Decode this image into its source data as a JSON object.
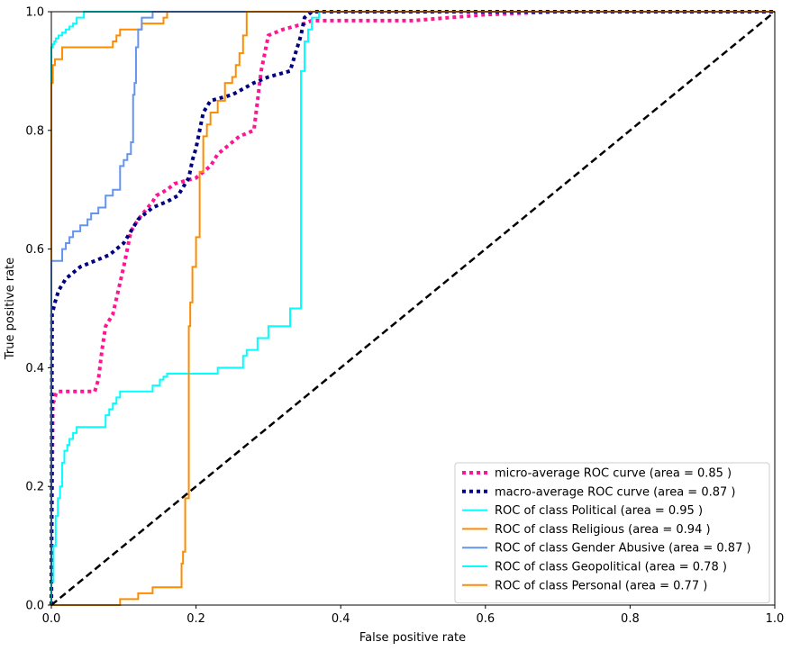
{
  "chart_data": {
    "type": "line",
    "xlabel": "False positive rate",
    "ylabel": "True positive rate",
    "xlim": [
      0.0,
      1.0
    ],
    "ylim": [
      0.0,
      1.0
    ],
    "grid": false,
    "legend_position": "bottom-right",
    "x_ticks": [
      "0.0",
      "0.2",
      "0.4",
      "0.6",
      "0.8",
      "1.0"
    ],
    "y_ticks": [
      "0.0",
      "0.2",
      "0.4",
      "0.6",
      "0.8",
      "1.0"
    ],
    "series": [
      {
        "name": "micro-average ROC curve (area = 0.85 )",
        "color": "#ff1493",
        "style": "dotted",
        "x": [
          0.0,
          0.002,
          0.004,
          0.005,
          0.006,
          0.008,
          0.01,
          0.06,
          0.065,
          0.07,
          0.075,
          0.08,
          0.085,
          0.1,
          0.105,
          0.11,
          0.115,
          0.12,
          0.14,
          0.145,
          0.16,
          0.17,
          0.2,
          0.22,
          0.23,
          0.24,
          0.26,
          0.28,
          0.285,
          0.29,
          0.295,
          0.3,
          0.32,
          0.35,
          0.36,
          0.4,
          0.5,
          0.55,
          0.6,
          0.7,
          0.8,
          0.9,
          1.0
        ],
        "y": [
          0.0,
          0.34,
          0.345,
          0.35,
          0.355,
          0.36,
          0.36,
          0.36,
          0.38,
          0.43,
          0.47,
          0.48,
          0.49,
          0.57,
          0.6,
          0.63,
          0.64,
          0.65,
          0.68,
          0.69,
          0.7,
          0.71,
          0.72,
          0.74,
          0.76,
          0.77,
          0.79,
          0.8,
          0.85,
          0.9,
          0.93,
          0.96,
          0.97,
          0.98,
          0.985,
          0.985,
          0.985,
          0.99,
          0.995,
          1.0,
          1.0,
          1.0,
          1.0
        ]
      },
      {
        "name": "macro-average ROC curve (area = 0.87 )",
        "color": "#000080",
        "style": "dotted",
        "x": [
          0.0,
          0.001,
          0.005,
          0.01,
          0.02,
          0.03,
          0.04,
          0.06,
          0.08,
          0.09,
          0.1,
          0.11,
          0.115,
          0.12,
          0.13,
          0.14,
          0.16,
          0.175,
          0.18,
          0.19,
          0.195,
          0.2,
          0.205,
          0.21,
          0.22,
          0.25,
          0.28,
          0.3,
          0.33,
          0.345,
          0.35,
          0.36,
          0.4,
          0.6,
          0.8,
          1.0
        ],
        "y": [
          0.0,
          0.49,
          0.51,
          0.53,
          0.55,
          0.56,
          0.57,
          0.58,
          0.59,
          0.6,
          0.61,
          0.63,
          0.64,
          0.65,
          0.66,
          0.67,
          0.68,
          0.69,
          0.7,
          0.72,
          0.75,
          0.77,
          0.8,
          0.83,
          0.85,
          0.86,
          0.88,
          0.89,
          0.9,
          0.96,
          0.99,
          1.0,
          1.0,
          1.0,
          1.0,
          1.0
        ]
      },
      {
        "name": "ROC of class Political (area = 0.95 )",
        "color": "#00ffff",
        "style": "solid",
        "x": [
          0.0,
          0.0,
          0.002,
          0.002,
          0.004,
          0.004,
          0.006,
          0.006,
          0.01,
          0.01,
          0.015,
          0.015,
          0.02,
          0.02,
          0.025,
          0.025,
          0.03,
          0.03,
          0.035,
          0.035,
          0.045,
          0.045,
          0.14,
          0.14,
          0.35,
          1.0
        ],
        "y": [
          0.0,
          0.94,
          0.94,
          0.945,
          0.945,
          0.95,
          0.95,
          0.955,
          0.955,
          0.96,
          0.96,
          0.965,
          0.965,
          0.97,
          0.97,
          0.975,
          0.975,
          0.98,
          0.98,
          0.99,
          0.99,
          1.0,
          1.0,
          1.0,
          1.0,
          1.0
        ]
      },
      {
        "name": "ROC of class Religious (area = 0.94 )",
        "color": "#ff8c00",
        "style": "solid",
        "x": [
          0.0,
          0.0,
          0.002,
          0.002,
          0.005,
          0.005,
          0.015,
          0.015,
          0.085,
          0.085,
          0.09,
          0.09,
          0.095,
          0.095,
          0.125,
          0.125,
          0.155,
          0.155,
          0.16,
          0.16,
          0.175,
          0.175,
          1.0
        ],
        "y": [
          0.0,
          0.88,
          0.88,
          0.91,
          0.91,
          0.92,
          0.92,
          0.94,
          0.94,
          0.95,
          0.95,
          0.96,
          0.96,
          0.97,
          0.97,
          0.98,
          0.98,
          0.99,
          0.99,
          1.0,
          1.0,
          1.0,
          1.0
        ]
      },
      {
        "name": "ROC of class Gender Abusive (area = 0.87 )",
        "color": "#6495ed",
        "style": "solid",
        "x": [
          0.0,
          0.0,
          0.015,
          0.015,
          0.02,
          0.02,
          0.025,
          0.025,
          0.03,
          0.03,
          0.04,
          0.04,
          0.05,
          0.05,
          0.055,
          0.055,
          0.065,
          0.065,
          0.075,
          0.075,
          0.085,
          0.085,
          0.095,
          0.095,
          0.1,
          0.1,
          0.105,
          0.105,
          0.11,
          0.11,
          0.113,
          0.113,
          0.115,
          0.115,
          0.117,
          0.117,
          0.12,
          0.12,
          0.125,
          0.125,
          0.14,
          0.14,
          1.0
        ],
        "y": [
          0.0,
          0.58,
          0.58,
          0.6,
          0.6,
          0.61,
          0.61,
          0.62,
          0.62,
          0.63,
          0.63,
          0.64,
          0.64,
          0.65,
          0.65,
          0.66,
          0.66,
          0.67,
          0.67,
          0.69,
          0.69,
          0.7,
          0.7,
          0.74,
          0.74,
          0.75,
          0.75,
          0.76,
          0.76,
          0.78,
          0.78,
          0.86,
          0.86,
          0.88,
          0.88,
          0.94,
          0.94,
          0.97,
          0.97,
          0.99,
          0.99,
          1.0,
          1.0
        ]
      },
      {
        "name": "ROC of class Geopolitical (area = 0.78 )",
        "color": "#00ffff",
        "style": "solid",
        "x": [
          0.0,
          0.0,
          0.003,
          0.003,
          0.006,
          0.006,
          0.009,
          0.009,
          0.012,
          0.012,
          0.015,
          0.015,
          0.018,
          0.018,
          0.022,
          0.022,
          0.025,
          0.025,
          0.03,
          0.03,
          0.035,
          0.035,
          0.075,
          0.075,
          0.08,
          0.08,
          0.085,
          0.085,
          0.09,
          0.09,
          0.095,
          0.095,
          0.14,
          0.14,
          0.15,
          0.15,
          0.155,
          0.155,
          0.16,
          0.16,
          0.23,
          0.23,
          0.265,
          0.265,
          0.27,
          0.27,
          0.285,
          0.285,
          0.3,
          0.3,
          0.33,
          0.33,
          0.345,
          0.345,
          0.35,
          0.35,
          0.355,
          0.355,
          0.36,
          0.36,
          0.37,
          0.37,
          1.0
        ],
        "y": [
          0.0,
          0.04,
          0.04,
          0.1,
          0.1,
          0.15,
          0.15,
          0.18,
          0.18,
          0.2,
          0.2,
          0.24,
          0.24,
          0.26,
          0.26,
          0.27,
          0.27,
          0.28,
          0.28,
          0.29,
          0.29,
          0.3,
          0.3,
          0.32,
          0.32,
          0.33,
          0.33,
          0.34,
          0.34,
          0.35,
          0.35,
          0.36,
          0.36,
          0.37,
          0.37,
          0.38,
          0.38,
          0.385,
          0.385,
          0.39,
          0.39,
          0.4,
          0.4,
          0.42,
          0.42,
          0.43,
          0.43,
          0.45,
          0.45,
          0.47,
          0.47,
          0.5,
          0.5,
          0.9,
          0.9,
          0.95,
          0.95,
          0.97,
          0.97,
          0.99,
          0.99,
          1.0,
          1.0
        ]
      },
      {
        "name": "ROC of class Personal (area = 0.77 )",
        "color": "#ff8c00",
        "style": "solid",
        "x": [
          0.0,
          0.095,
          0.095,
          0.12,
          0.12,
          0.14,
          0.14,
          0.18,
          0.18,
          0.182,
          0.182,
          0.185,
          0.185,
          0.19,
          0.19,
          0.192,
          0.192,
          0.195,
          0.195,
          0.2,
          0.2,
          0.205,
          0.205,
          0.21,
          0.21,
          0.215,
          0.215,
          0.22,
          0.22,
          0.23,
          0.23,
          0.24,
          0.24,
          0.25,
          0.25,
          0.255,
          0.255,
          0.26,
          0.26,
          0.265,
          0.265,
          0.27,
          0.27,
          1.0
        ],
        "y": [
          0.0,
          0.0,
          0.01,
          0.01,
          0.02,
          0.02,
          0.03,
          0.03,
          0.07,
          0.07,
          0.09,
          0.09,
          0.18,
          0.18,
          0.47,
          0.47,
          0.51,
          0.51,
          0.57,
          0.57,
          0.62,
          0.62,
          0.73,
          0.73,
          0.79,
          0.79,
          0.81,
          0.81,
          0.83,
          0.83,
          0.85,
          0.85,
          0.88,
          0.88,
          0.89,
          0.89,
          0.91,
          0.91,
          0.93,
          0.93,
          0.96,
          0.96,
          1.0,
          1.0
        ]
      },
      {
        "name": "",
        "color": "#000000",
        "style": "dashed",
        "x": [
          0.0,
          1.0
        ],
        "y": [
          0.0,
          1.0
        ]
      }
    ]
  }
}
